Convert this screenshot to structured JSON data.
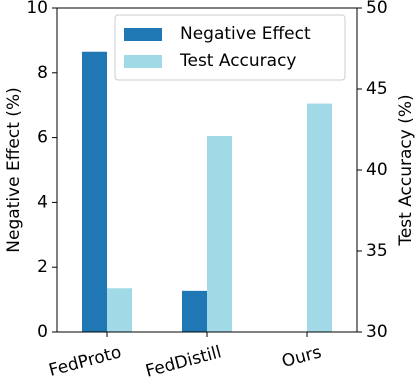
{
  "chart_data": {
    "type": "bar",
    "categories": [
      "FedProto",
      "FedDistill",
      "Ours"
    ],
    "series": [
      {
        "name": "Negative Effect",
        "color": "#1f77b4",
        "values": [
          8.65,
          1.27,
          0
        ]
      },
      {
        "name": "Test Accuracy",
        "color": "#a1dae6",
        "values": [
          32.7,
          42.1,
          44.1
        ],
        "axis": "y2"
      }
    ],
    "ylabel": "Negative Effect (%)",
    "y2label": "Test Accuracy (%)",
    "ylim": [
      0,
      10
    ],
    "yticks": [
      0,
      2,
      4,
      6,
      8,
      10
    ],
    "y2lim": [
      30,
      50
    ],
    "y2ticks": [
      30,
      35,
      40,
      45,
      50
    ],
    "legend": "upper right"
  }
}
